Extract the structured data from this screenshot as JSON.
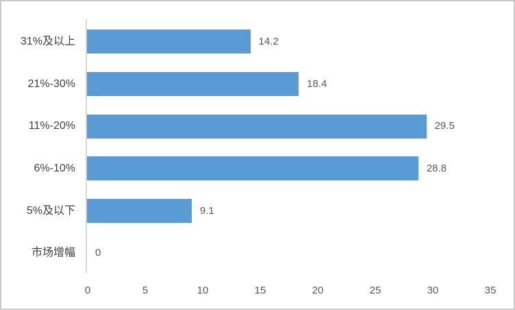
{
  "chart_data": {
    "type": "bar",
    "orientation": "horizontal",
    "title": "",
    "xlabel": "",
    "ylabel": "",
    "categories": [
      "31%及以上",
      "21%-30%",
      "11%-20%",
      "6%-10%",
      "5%及以下",
      "市场增幅"
    ],
    "values": [
      14.2,
      18.4,
      29.5,
      28.8,
      9.1,
      0
    ],
    "data_labels": [
      "14.2",
      "18.4",
      "29.5",
      "28.8",
      "9.1",
      "0"
    ],
    "xlim": [
      0,
      35
    ],
    "x_ticks": [
      0,
      5,
      10,
      15,
      20,
      25,
      30,
      35
    ],
    "grid": false,
    "legend": false,
    "data_labels_shown": true,
    "bar_color": "#5B9BD5",
    "axis_line_color": "#D6D6D6",
    "tick_label_color": "#595959",
    "data_label_color": "#595959",
    "category_label_color": "#404040",
    "background_color": "#FFFFFF",
    "border_color": "#C9C9C9"
  }
}
